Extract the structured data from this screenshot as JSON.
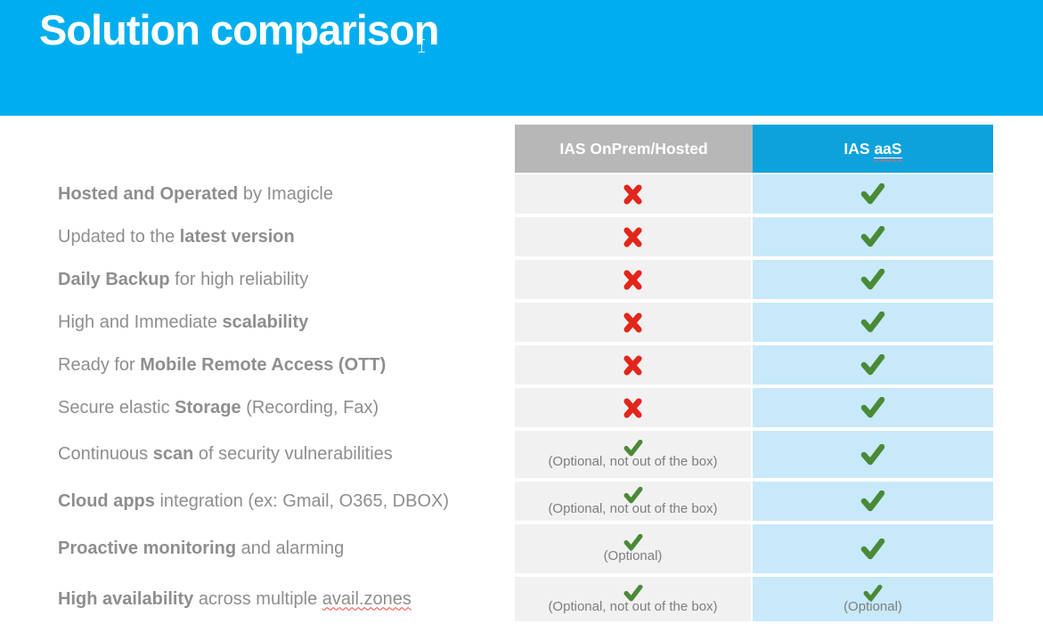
{
  "title": "Solution comparison",
  "colors": {
    "banner": "#00AEEF",
    "header_gray": "#B7B7B7",
    "header_blue": "#0DA2DC",
    "cell_gray": "#F1F1F1",
    "cell_blue": "#C8E9FA",
    "label_text": "#8E8E8E",
    "note_text": "#7E7E7E",
    "check_green": "#4A8A37",
    "cross_red": "#E2261C",
    "title_text": "#FFFFFF"
  },
  "table": {
    "columns": [
      {
        "label": "IAS OnPrem/Hosted"
      },
      {
        "prefix": "IAS ",
        "underlined": "aaS"
      }
    ],
    "rows": [
      {
        "label_parts": [
          {
            "text": "Hosted and Operated",
            "bold": true
          },
          {
            "text": " by Imagicle",
            "bold": false
          }
        ],
        "onprem": {
          "mark": "cross",
          "note": ""
        },
        "aas": {
          "mark": "check",
          "note": ""
        }
      },
      {
        "label_parts": [
          {
            "text": "Updated to the ",
            "bold": false
          },
          {
            "text": "latest version",
            "bold": true
          }
        ],
        "onprem": {
          "mark": "cross",
          "note": ""
        },
        "aas": {
          "mark": "check",
          "note": ""
        }
      },
      {
        "label_parts": [
          {
            "text": "Daily Backup",
            "bold": true
          },
          {
            "text": " for high reliability",
            "bold": false
          }
        ],
        "onprem": {
          "mark": "cross",
          "note": ""
        },
        "aas": {
          "mark": "check",
          "note": ""
        }
      },
      {
        "label_parts": [
          {
            "text": "High and Immediate ",
            "bold": false
          },
          {
            "text": "scalability",
            "bold": true
          }
        ],
        "onprem": {
          "mark": "cross",
          "note": ""
        },
        "aas": {
          "mark": "check",
          "note": ""
        }
      },
      {
        "label_parts": [
          {
            "text": "Ready for ",
            "bold": false
          },
          {
            "text": "Mobile Remote Access (OTT)",
            "bold": true
          }
        ],
        "onprem": {
          "mark": "cross",
          "note": ""
        },
        "aas": {
          "mark": "check",
          "note": ""
        }
      },
      {
        "label_parts": [
          {
            "text": "Secure elastic ",
            "bold": false
          },
          {
            "text": "Storage",
            "bold": true
          },
          {
            "text": " (Recording, Fax)",
            "bold": false
          }
        ],
        "onprem": {
          "mark": "cross",
          "note": ""
        },
        "aas": {
          "mark": "check",
          "note": ""
        }
      },
      {
        "label_parts": [
          {
            "text": "Continuous ",
            "bold": false
          },
          {
            "text": "scan",
            "bold": true
          },
          {
            "text": " of security vulnerabilities",
            "bold": false
          }
        ],
        "onprem": {
          "mark": "check",
          "note": "(Optional, not out of the box)"
        },
        "aas": {
          "mark": "check",
          "note": ""
        }
      },
      {
        "label_parts": [
          {
            "text": "Cloud apps",
            "bold": true
          },
          {
            "text": " integration (ex: Gmail, O365, DBOX)",
            "bold": false
          }
        ],
        "onprem": {
          "mark": "check",
          "note": "(Optional, not out of the box)"
        },
        "aas": {
          "mark": "check",
          "note": ""
        }
      },
      {
        "label_parts": [
          {
            "text": "Proactive monitoring",
            "bold": true
          },
          {
            "text": " and alarming",
            "bold": false
          }
        ],
        "onprem": {
          "mark": "check",
          "note": "(Optional)"
        },
        "aas": {
          "mark": "check",
          "note": ""
        }
      },
      {
        "label_parts": [
          {
            "text": "High availability",
            "bold": true
          },
          {
            "text": " across multiple ",
            "bold": false
          },
          {
            "text": "avail.zones",
            "bold": false,
            "wavy": true
          }
        ],
        "onprem": {
          "mark": "check",
          "note": "(Optional, not out of the box)"
        },
        "aas": {
          "mark": "check",
          "note": "(Optional)"
        }
      }
    ]
  }
}
